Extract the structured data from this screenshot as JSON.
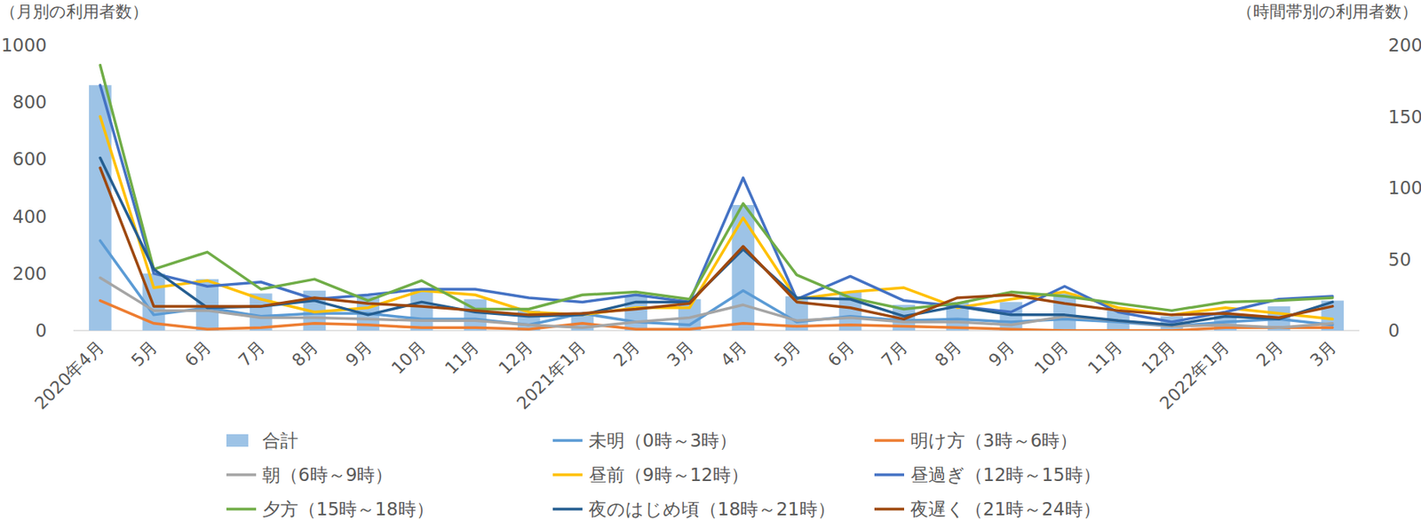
{
  "chart_data": {
    "type": "bar",
    "y_label": "（月別の利用者数）",
    "y2_label": "（時間帯別の利用者数）",
    "categories": [
      "2020年4月",
      "5月",
      "6月",
      "7月",
      "8月",
      "9月",
      "10月",
      "11月",
      "12月",
      "2021年1月",
      "2月",
      "3月",
      "4月",
      "5月",
      "6月",
      "7月",
      "8月",
      "9月",
      "10月",
      "11月",
      "12月",
      "2022年1月",
      "2月",
      "3月"
    ],
    "ylim": [
      0,
      1000
    ],
    "yticks": [
      0,
      200,
      400,
      600,
      800,
      1000
    ],
    "y2lim": [
      0,
      200
    ],
    "y2ticks": [
      0,
      50,
      100,
      150,
      200
    ],
    "grid": false,
    "legend": "bottom",
    "series": [
      {
        "name": "合計",
        "type": "bar",
        "color": "#9dc3e6",
        "values": [
          860,
          200,
          180,
          130,
          140,
          120,
          140,
          110,
          70,
          60,
          120,
          110,
          440,
          120,
          135,
          90,
          100,
          100,
          130,
          70,
          50,
          60,
          85,
          105
        ]
      },
      {
        "name": "未明（0時～3時）",
        "type": "line",
        "axis": "y2",
        "color": "#5b9bd5",
        "values": [
          63,
          11,
          16,
          10,
          12,
          12,
          8,
          8,
          4,
          12,
          6,
          4,
          28,
          6,
          10,
          7,
          8,
          6,
          8,
          6,
          3,
          6,
          8,
          4
        ]
      },
      {
        "name": "明け方（3時～6時）",
        "type": "line",
        "axis": "y2",
        "color": "#ed7d31",
        "values": [
          21,
          5,
          1,
          2,
          5,
          4,
          2,
          2,
          1,
          5,
          1,
          1,
          5,
          3,
          4,
          3,
          2,
          1,
          0,
          0,
          0,
          2,
          2,
          2
        ]
      },
      {
        "name": "朝（6時～9時）",
        "type": "line",
        "axis": "y2",
        "color": "#a5a5a5",
        "values": [
          37,
          14,
          14,
          9,
          9,
          8,
          7,
          7,
          4,
          2,
          6,
          9,
          18,
          7,
          9,
          6,
          6,
          4,
          10,
          7,
          3,
          4,
          2,
          5
        ]
      },
      {
        "name": "昼前（9時～12時）",
        "type": "line",
        "axis": "y2",
        "color": "#ffc000",
        "values": [
          150,
          30,
          35,
          22,
          13,
          16,
          28,
          25,
          13,
          11,
          16,
          16,
          79,
          22,
          27,
          30,
          16,
          22,
          27,
          16,
          11,
          16,
          12,
          8
        ]
      },
      {
        "name": "昼過ぎ（12時～15時）",
        "type": "line",
        "axis": "y2",
        "color": "#4472c4",
        "values": [
          172,
          40,
          31,
          34,
          22,
          25,
          29,
          29,
          23,
          20,
          25,
          20,
          107,
          22,
          38,
          21,
          17,
          13,
          31,
          13,
          6,
          13,
          22,
          24
        ]
      },
      {
        "name": "夕方（15時～18時）",
        "type": "line",
        "axis": "y2",
        "color": "#70ad47",
        "values": [
          186,
          43,
          55,
          29,
          36,
          21,
          35,
          15,
          15,
          25,
          27,
          22,
          89,
          39,
          23,
          15,
          19,
          27,
          24,
          19,
          14,
          20,
          21,
          23
        ]
      },
      {
        "name": "夜のはじめ頃（18時～21時）",
        "type": "line",
        "axis": "y2",
        "color": "#255e91",
        "values": [
          121,
          43,
          16,
          17,
          21,
          11,
          20,
          13,
          10,
          11,
          20,
          20,
          57,
          23,
          22,
          10,
          17,
          11,
          11,
          7,
          4,
          10,
          8,
          20
        ]
      },
      {
        "name": "夜遅く（21時～24時）",
        "type": "line",
        "axis": "y2",
        "color": "#9e480e",
        "values": [
          114,
          17,
          17,
          17,
          23,
          19,
          17,
          14,
          11,
          12,
          15,
          19,
          59,
          20,
          16,
          8,
          23,
          25,
          19,
          14,
          11,
          12,
          9,
          17
        ]
      }
    ]
  }
}
